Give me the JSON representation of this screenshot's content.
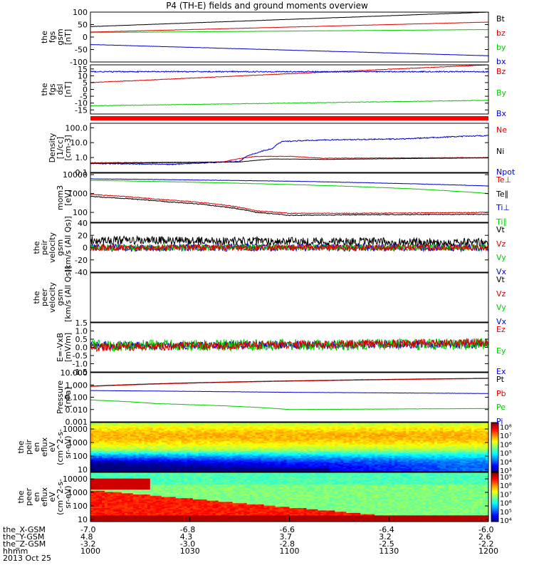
{
  "title": "P4 (TH-E) fields and ground moments overview",
  "chart_data": {
    "type": "line",
    "x_axis": {
      "rows": [
        {
          "label": "the_X-GSM",
          "values": [
            "-7.0",
            "-6.8",
            "-6.6",
            "-6.4",
            "-6.0"
          ]
        },
        {
          "label": "the_Y-GSM",
          "values": [
            "4.8",
            "4.3",
            "3.7",
            "3.2",
            "2.6"
          ]
        },
        {
          "label": "the_Z-GSM",
          "values": [
            "-3.2",
            "-3.0",
            "-2.8",
            "-2.5",
            "-2.2"
          ]
        },
        {
          "label": "hhmm",
          "values": [
            "1000",
            "1030",
            "1100",
            "1130",
            "1200"
          ]
        }
      ],
      "date": "2013 Oct 25",
      "time_min": 0,
      "time_max": 120,
      "tick_times": [
        0,
        30,
        60,
        90,
        120
      ]
    },
    "panels": [
      {
        "id": "fgs-gsm",
        "ylabel": [
          "the",
          "fgs",
          "gsm",
          "[nT]"
        ],
        "ylim": [
          -100,
          100
        ],
        "yticks": [
          "100",
          "50",
          "0",
          "-50",
          "-100"
        ],
        "ytick_values": [
          100,
          50,
          0,
          -50,
          -100
        ],
        "legend": [
          {
            "name": "Bt",
            "color": "#000000"
          },
          {
            "name": "bz",
            "color": "#dd0000"
          },
          {
            "name": "by",
            "color": "#00cc00"
          },
          {
            "name": "bx",
            "color": "#0000cc"
          }
        ],
        "series": [
          {
            "color": "#000000",
            "start": 42,
            "end": 100,
            "noise": 0.5
          },
          {
            "color": "#dd0000",
            "start": 20,
            "end": 60,
            "noise": 0.5
          },
          {
            "color": "#00cc00",
            "start": 18,
            "end": 30,
            "noise": 0.5
          },
          {
            "color": "#0000cc",
            "start": -30,
            "end": -75,
            "noise": 0.5
          }
        ]
      },
      {
        "id": "fgs-dsl",
        "ylabel": [
          "the",
          "fgs",
          "dsl",
          "[nT]"
        ],
        "ylim": [
          -18,
          18
        ],
        "yticks": [
          "15",
          "10",
          "5",
          "0",
          "-5",
          "-10",
          "-15"
        ],
        "ytick_values": [
          15,
          10,
          5,
          0,
          -5,
          -10,
          -15
        ],
        "legend": [
          {
            "name": "Bz",
            "color": "#dd0000"
          },
          {
            "name": "By",
            "color": "#00cc00"
          },
          {
            "name": "Bx",
            "color": "#0000cc"
          }
        ],
        "series": [
          {
            "color": "#dd0000",
            "start": 5,
            "end": 18,
            "noise": 0.2
          },
          {
            "color": "#0000cc",
            "start": 13,
            "end": 13,
            "noise": 0.4
          },
          {
            "color": "#00cc00",
            "start": -12,
            "end": -8,
            "noise": 0.2
          }
        ]
      },
      {
        "id": "density",
        "ylabel": [
          "Density",
          "[1/cc]",
          "[cm-3]"
        ],
        "log": true,
        "ylim": [
          0.1,
          200
        ],
        "yticks": [
          "100.0",
          "10.0",
          "1.0",
          "0.1"
        ],
        "ytick_values": [
          100,
          10,
          1,
          0.1
        ],
        "legend": [
          {
            "name": "Ne",
            "color": "#dd0000"
          },
          {
            "name": "Ni",
            "color": "#000000"
          },
          {
            "name": "Npot",
            "color": "#0000cc"
          }
        ],
        "series": [
          {
            "color": "#0000cc",
            "profile": [
              [
                0,
                0.4
              ],
              [
                25,
                0.35
              ],
              [
                45,
                0.55
              ],
              [
                50,
                2
              ],
              [
                55,
                4
              ],
              [
                58,
                12
              ],
              [
                70,
                15
              ],
              [
                95,
                18
              ],
              [
                120,
                30
              ]
            ],
            "noise": 0.08
          },
          {
            "color": "#dd0000",
            "profile": [
              [
                0,
                0.45
              ],
              [
                40,
                0.5
              ],
              [
                50,
                1.2
              ],
              [
                60,
                1.2
              ],
              [
                70,
                0.9
              ],
              [
                120,
                1.0
              ]
            ],
            "noise": 0.04
          },
          {
            "color": "#000000",
            "profile": [
              [
                0,
                0.4
              ],
              [
                45,
                0.5
              ],
              [
                55,
                0.8
              ],
              [
                70,
                0.75
              ],
              [
                120,
                0.95
              ]
            ],
            "noise": 0.02
          }
        ]
      },
      {
        "id": "temperature",
        "ylabel": [
          "mom3",
          "[eV]"
        ],
        "log": true,
        "ylim": [
          30,
          12000
        ],
        "yticks": [
          "10000",
          "1000",
          "100"
        ],
        "ytick_values": [
          10000,
          1000,
          100
        ],
        "legend": [
          {
            "name": "Te⊥",
            "color": "#dd0000"
          },
          {
            "name": "Te∥",
            "color": "#000000"
          },
          {
            "name": "Ti⊥",
            "color": "#0000cc"
          },
          {
            "name": "Ti∥",
            "color": "#00cc00"
          }
        ],
        "series": [
          {
            "color": "#0000cc",
            "profile": [
              [
                0,
                6000
              ],
              [
                60,
                4500
              ],
              [
                120,
                2500
              ]
            ],
            "noise": 0.02
          },
          {
            "color": "#00cc00",
            "profile": [
              [
                0,
                5000
              ],
              [
                60,
                3000
              ],
              [
                120,
                1000
              ]
            ],
            "noise": 0.02
          },
          {
            "color": "#dd0000",
            "profile": [
              [
                0,
                900
              ],
              [
                20,
                500
              ],
              [
                40,
                250
              ],
              [
                50,
                120
              ],
              [
                60,
                90
              ],
              [
                80,
                90
              ],
              [
                120,
                100
              ]
            ],
            "noise": 0.05
          },
          {
            "color": "#000000",
            "profile": [
              [
                0,
                700
              ],
              [
                20,
                400
              ],
              [
                40,
                200
              ],
              [
                50,
                100
              ],
              [
                60,
                70
              ],
              [
                80,
                75
              ],
              [
                120,
                80
              ]
            ],
            "noise": 0.05
          }
        ]
      },
      {
        "id": "peir-velocity",
        "ylabel": [
          "the",
          "peir",
          "velocity",
          "gsm",
          "[km/s (All Qs)]"
        ],
        "ylim": [
          -40,
          40
        ],
        "yticks": [
          "40",
          "20",
          "0",
          "-20",
          "-40"
        ],
        "ytick_values": [
          40,
          20,
          0,
          -20,
          -40
        ],
        "legend": [
          {
            "name": "Vt",
            "color": "#000000"
          },
          {
            "name": "Vz",
            "color": "#dd0000"
          },
          {
            "name": "Vy",
            "color": "#00cc00"
          },
          {
            "name": "Vx",
            "color": "#0000cc"
          }
        ],
        "series": [
          {
            "color": "#000000",
            "start": 12,
            "end": 8,
            "noise": 7
          },
          {
            "color": "#0000cc",
            "start": 0,
            "end": 0,
            "noise": 6
          },
          {
            "color": "#00cc00",
            "start": 0,
            "end": 0,
            "noise": 5
          },
          {
            "color": "#dd0000",
            "start": 0,
            "end": 0,
            "noise": 5
          }
        ]
      },
      {
        "id": "peer-velocity",
        "ylabel": [
          "the",
          "peer",
          "velocity",
          "gsm",
          "[km/s (All Qs)]"
        ],
        "ylim": [
          -1,
          1
        ],
        "yticks": [],
        "ytick_values": [],
        "legend": [
          {
            "name": "Vt",
            "color": "#000000"
          },
          {
            "name": "Vz",
            "color": "#dd0000"
          },
          {
            "name": "Vy",
            "color": "#00cc00"
          },
          {
            "name": "Vx",
            "color": "#0000cc"
          }
        ],
        "series": []
      },
      {
        "id": "efield",
        "ylabel": [
          "E=-VxB",
          "[mV/m]"
        ],
        "ylim": [
          -1.5,
          1.5
        ],
        "yticks": [
          "1.5",
          "1.0",
          "0.5",
          "0.0",
          "-0.5",
          "-1.0",
          "-1.5"
        ],
        "ytick_values": [
          1.5,
          1,
          0.5,
          0,
          -0.5,
          -1,
          -1.5
        ],
        "legend": [
          {
            "name": "Ez",
            "color": "#dd0000"
          },
          {
            "name": "Ey",
            "color": "#00cc00"
          },
          {
            "name": "Ex",
            "color": "#0000cc"
          }
        ],
        "series": [
          {
            "color": "#0000cc",
            "start": 0.1,
            "end": 0.2,
            "noise": 0.25
          },
          {
            "color": "#00cc00",
            "start": 0.1,
            "end": 0.2,
            "noise": 0.35
          },
          {
            "color": "#dd0000",
            "start": 0.0,
            "end": 0.3,
            "noise": 0.25
          }
        ]
      },
      {
        "id": "pressure",
        "ylabel": [
          "Pressure",
          "[nPa]"
        ],
        "log": true,
        "ylim": [
          0.001,
          10
        ],
        "yticks": [
          "10.000",
          "1.000",
          "0.100",
          "0.010",
          "0.001"
        ],
        "ytick_values": [
          10,
          1,
          0.1,
          0.01,
          0.001
        ],
        "legend": [
          {
            "name": "Pt",
            "color": "#000000"
          },
          {
            "name": "Pb",
            "color": "#dd0000"
          },
          {
            "name": "Pe",
            "color": "#00cc00"
          },
          {
            "name": "Pi",
            "color": "#0000cc"
          }
        ],
        "series": [
          {
            "color": "#000000",
            "profile": [
              [
                0,
                0.8
              ],
              [
                120,
                3.5
              ]
            ],
            "noise": 0.01
          },
          {
            "color": "#dd0000",
            "profile": [
              [
                0,
                0.75
              ],
              [
                120,
                3.3
              ]
            ],
            "noise": 0.01
          },
          {
            "color": "#0000cc",
            "profile": [
              [
                0,
                0.35
              ],
              [
                60,
                0.25
              ],
              [
                120,
                0.2
              ]
            ],
            "noise": 0.02
          },
          {
            "color": "#00cc00",
            "profile": [
              [
                0,
                0.06
              ],
              [
                20,
                0.03
              ],
              [
                50,
                0.015
              ],
              [
                60,
                0.01
              ],
              [
                120,
                0.012
              ]
            ],
            "noise": 0.03
          }
        ]
      },
      {
        "id": "peir-spec",
        "type": "spectrogram",
        "ylabel": [
          "the",
          "peir",
          "en",
          "eflux",
          "eV",
          "(cm^2-s-",
          "sr-eV)"
        ],
        "log": true,
        "ylim": [
          7,
          30000
        ],
        "yticks": [
          "10000",
          "1000",
          "100",
          "10"
        ],
        "ytick_values": [
          10000,
          1000,
          100,
          10
        ],
        "colorbar": [
          "10⁸",
          "10⁷",
          "10⁶",
          "10⁵",
          "10⁴",
          "10³"
        ]
      },
      {
        "id": "peer-spec",
        "type": "spectrogram",
        "ylabel": [
          "the",
          "peer",
          "en",
          "eflux",
          "eV",
          "(cm^2-s-",
          "sr-eV)"
        ],
        "log": true,
        "ylim": [
          7,
          30000
        ],
        "yticks": [
          "10000",
          "1000",
          "100",
          "10"
        ],
        "ytick_values": [
          10000,
          1000,
          100,
          10
        ],
        "colorbar": [
          "10⁹",
          "10⁸",
          "10⁷",
          "10⁶",
          "10⁵",
          "10⁴"
        ]
      }
    ]
  }
}
